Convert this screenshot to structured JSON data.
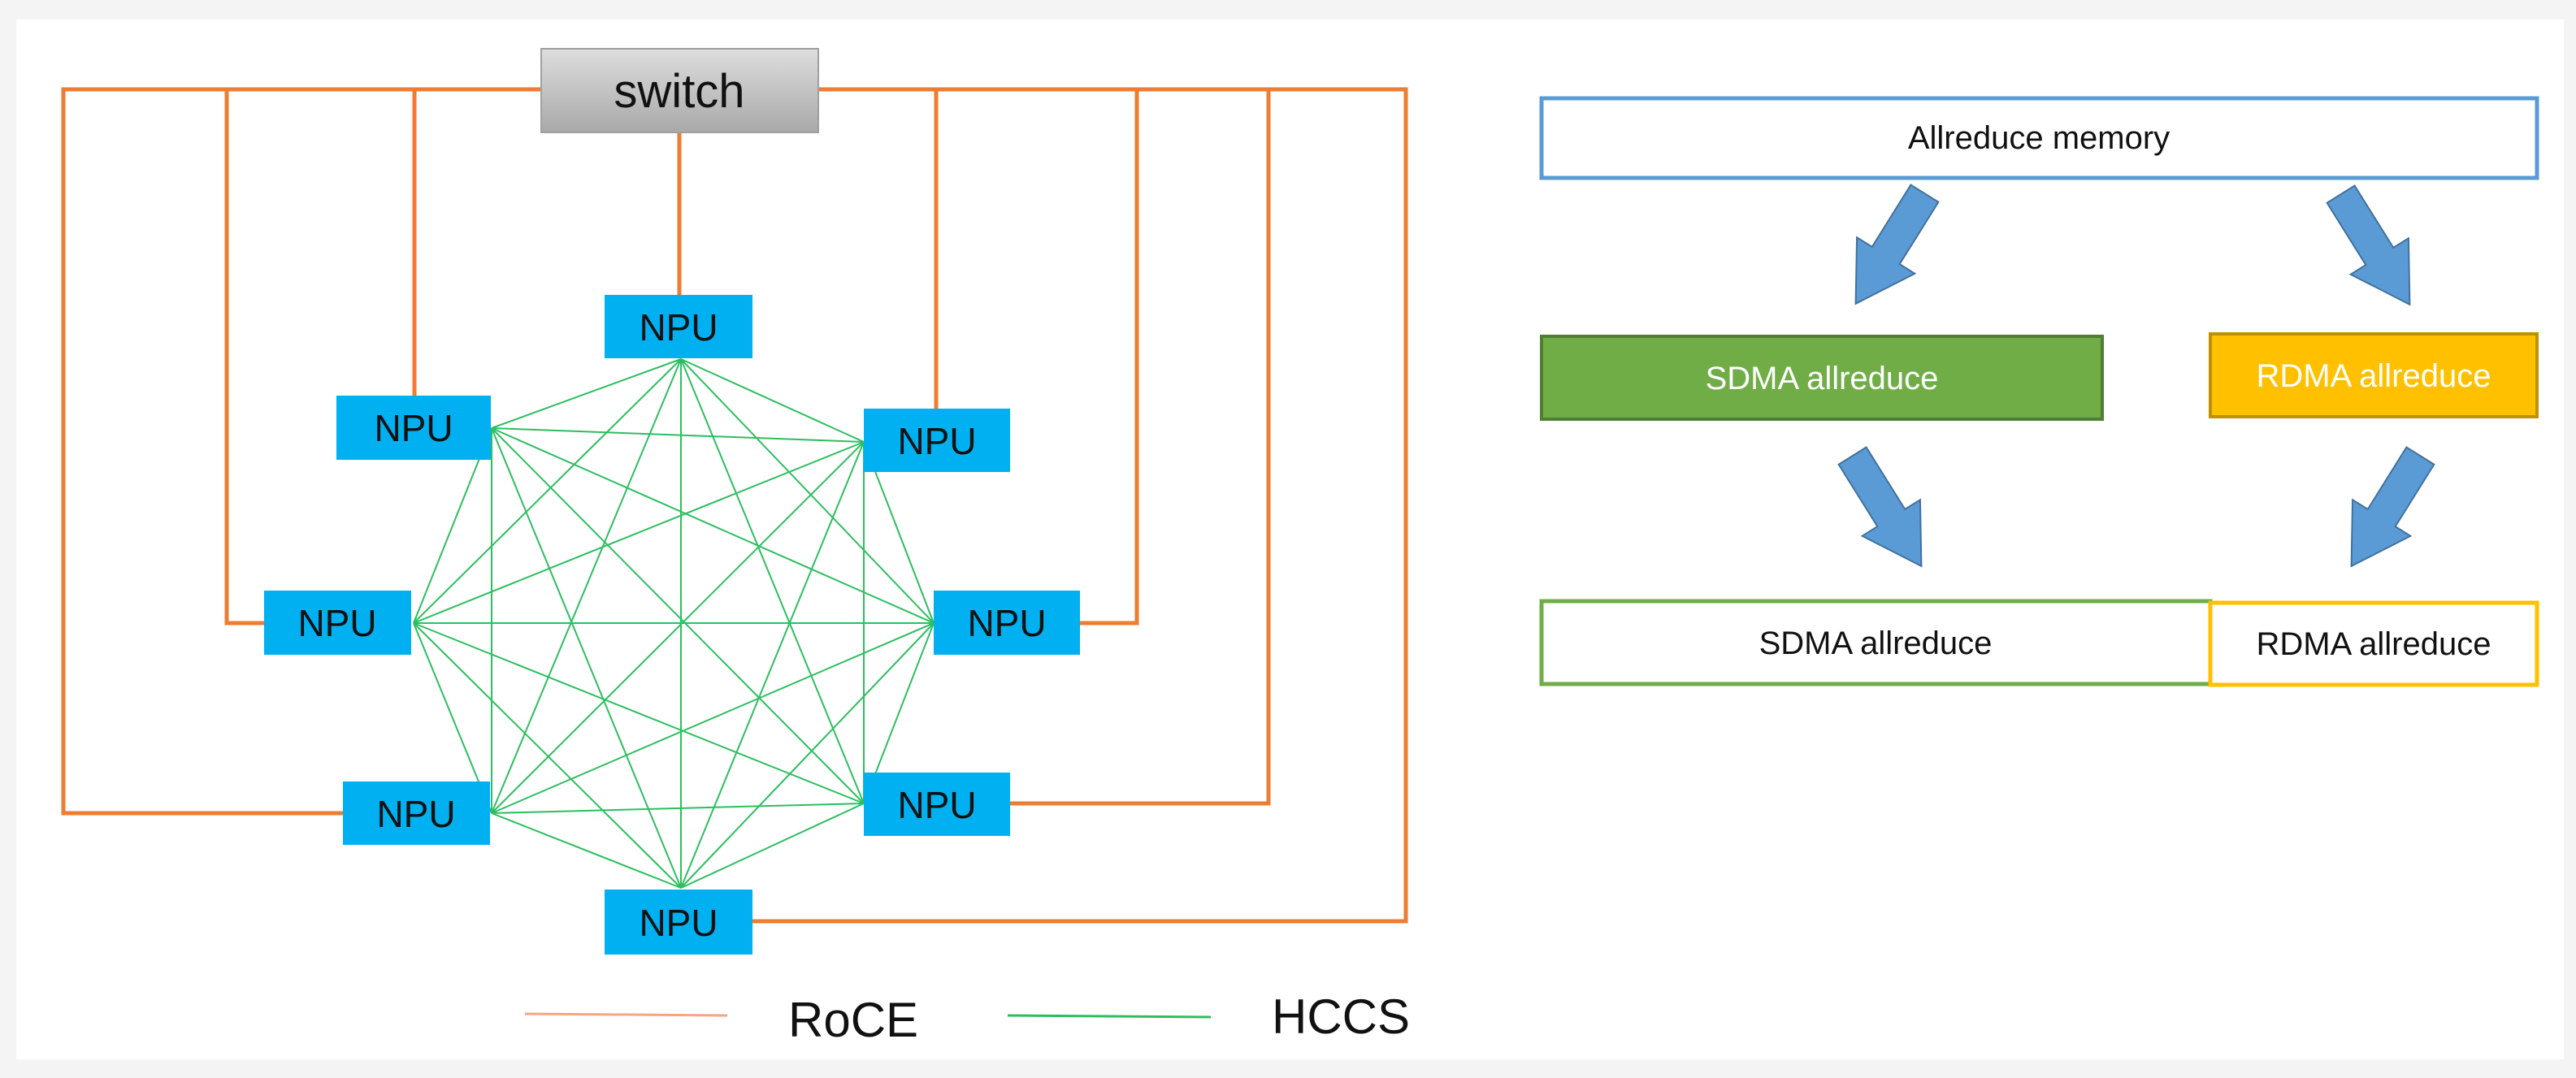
{
  "topology": {
    "switch_label": "switch",
    "npu_label": "NPU",
    "npus": [
      "NPU",
      "NPU",
      "NPU",
      "NPU",
      "NPU",
      "NPU",
      "NPU",
      "NPU"
    ],
    "legend": {
      "roce": "RoCE",
      "hccs": "HCCS"
    },
    "colors": {
      "roce": "#ED7D31",
      "hccs": "#2DBE60",
      "npu": "#00B0F0",
      "switch": "#BFBFBF"
    }
  },
  "flow": {
    "memory_label": "Allreduce memory",
    "sdma_label": "SDMA allreduce",
    "rdma_label": "RDMA allreduce",
    "result_sdma_label": "SDMA allreduce",
    "result_rdma_label": "RDMA allreduce",
    "arrow_icon": "block-arrow",
    "colors": {
      "memory_border": "#5B9BD5",
      "sdma": "#70AD47",
      "rdma": "#FFC000",
      "arrow": "#5B9BD5"
    }
  }
}
